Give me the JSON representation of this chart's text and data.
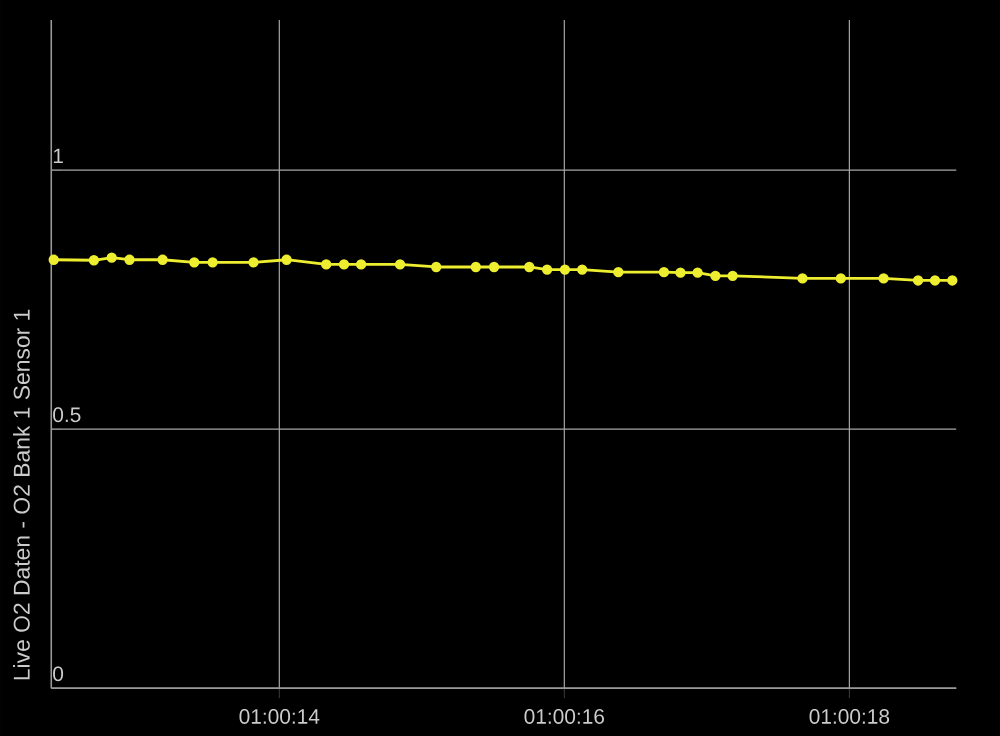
{
  "chart_data": {
    "type": "line",
    "ylabel": "Live O2 Daten - O2 Bank 1 Sensor 1",
    "x": [
      1.0034492,
      1.0035275,
      1.0035622,
      1.0035969,
      1.0036614,
      1.0037231,
      1.0037589,
      1.0038386,
      1.0039031,
      1.0039803,
      1.004015,
      1.0040483,
      1.0041242,
      1.0041947,
      1.0042719,
      1.0043075,
      1.0043761,
      1.0044108,
      1.0044456,
      1.0044792,
      1.0045497,
      1.0046386,
      1.0046708,
      1.0047042,
      1.0047389,
      1.0047725,
      1.0049086,
      1.0049833,
      1.0050667,
      1.0051339,
      1.0051669,
      1.0052006
    ],
    "series": [
      {
        "color": "#eeee30",
        "values": [
          0.827,
          0.826,
          0.831,
          0.827,
          0.827,
          0.822,
          0.822,
          0.822,
          0.827,
          0.818,
          0.818,
          0.818,
          0.818,
          0.813,
          0.813,
          0.813,
          0.813,
          0.808,
          0.808,
          0.808,
          0.803,
          0.803,
          0.802,
          0.802,
          0.796,
          0.796,
          0.791,
          0.791,
          0.791,
          0.787,
          0.787,
          0.787
        ]
      }
    ],
    "xlim": [
      1.0034444,
      1.0052083
    ],
    "xticks": [
      {
        "value": 1.0038889,
        "label": "01:00:14"
      },
      {
        "value": 1.0044444,
        "label": "01:00:16"
      },
      {
        "value": 1.005,
        "label": "01:00:18"
      }
    ],
    "ylim": [
      0,
      1.29
    ],
    "yticks": [
      0,
      0.5,
      1
    ],
    "grid": true,
    "marker": "circle",
    "line_style": "solid"
  }
}
